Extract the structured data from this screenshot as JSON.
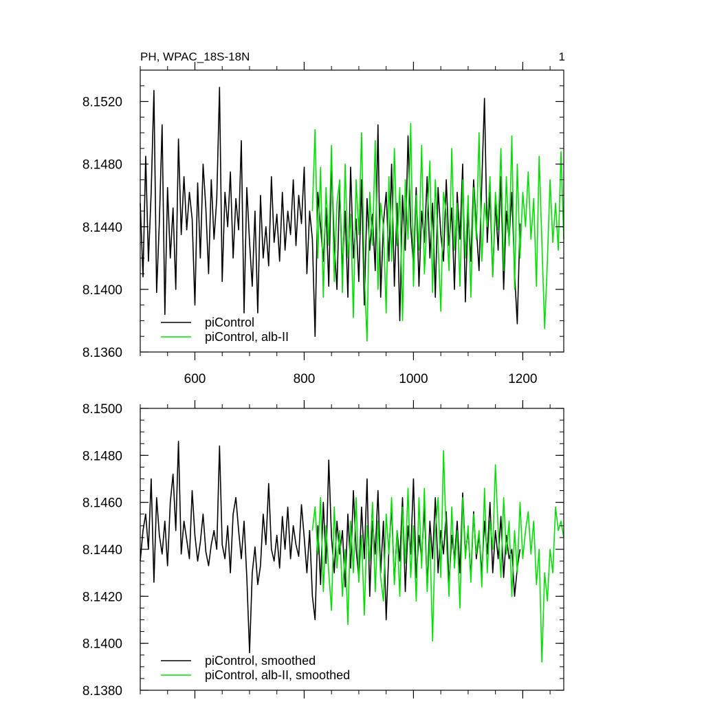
{
  "chart_data": [
    {
      "type": "line",
      "title": "PH, WPAC_18S-18N",
      "corner_label": "1",
      "xlim": [
        500,
        1275
      ],
      "ylim": [
        8.136,
        8.154
      ],
      "xticks": [
        600,
        800,
        1000,
        1200
      ],
      "xtick_labels": [
        "600",
        "800",
        "1000",
        "1200"
      ],
      "yticks": [
        8.136,
        8.14,
        8.144,
        8.148,
        8.152
      ],
      "ytick_labels": [
        "8.1360",
        "8.1400",
        "8.1440",
        "8.1480",
        "8.1520"
      ],
      "grid": false,
      "legend_position": "bottom-left",
      "series": [
        {
          "name": "piControl",
          "color": "#000000",
          "x": [
            500,
            505,
            510,
            515,
            520,
            525,
            530,
            535,
            540,
            545,
            550,
            555,
            560,
            565,
            570,
            575,
            580,
            585,
            590,
            595,
            600,
            605,
            610,
            615,
            620,
            625,
            630,
            635,
            640,
            645,
            650,
            655,
            660,
            665,
            670,
            675,
            680,
            685,
            690,
            695,
            700,
            705,
            710,
            715,
            720,
            725,
            730,
            735,
            740,
            745,
            750,
            755,
            760,
            765,
            770,
            775,
            780,
            785,
            790,
            795,
            800,
            805,
            810,
            815,
            820,
            825,
            830,
            835,
            840,
            845,
            850,
            855,
            860,
            865,
            870,
            875,
            880,
            885,
            890,
            895,
            900,
            905,
            910,
            915,
            920,
            925,
            930,
            935,
            940,
            945,
            950,
            955,
            960,
            965,
            970,
            975,
            980,
            985,
            990,
            995,
            1000,
            1005,
            1010,
            1015,
            1020,
            1025,
            1030,
            1035,
            1040,
            1045,
            1050,
            1055,
            1060,
            1065,
            1070,
            1075,
            1080,
            1085,
            1090,
            1095,
            1100,
            1105,
            1110,
            1115,
            1120,
            1125,
            1130,
            1135,
            1140,
            1145,
            1150,
            1155,
            1160,
            1165,
            1170,
            1175,
            1180,
            1185,
            1190,
            1195
          ],
          "values": [
            8.1455,
            8.1408,
            8.1485,
            8.1418,
            8.1462,
            8.1527,
            8.1398,
            8.1443,
            8.1505,
            8.1384,
            8.1465,
            8.142,
            8.1452,
            8.14,
            8.1496,
            8.1435,
            8.1472,
            8.1438,
            8.1462,
            8.1445,
            8.139,
            8.1468,
            8.142,
            8.148,
            8.1452,
            8.141,
            8.147,
            8.1432,
            8.1458,
            8.1529,
            8.1405,
            8.1462,
            8.144,
            8.1475,
            8.142,
            8.1458,
            8.1438,
            8.1495,
            8.1385,
            8.1465,
            8.143,
            8.1402,
            8.145,
            8.1385,
            8.146,
            8.142,
            8.144,
            8.1415,
            8.1472,
            8.143,
            8.1448,
            8.1418,
            8.1462,
            8.1425,
            8.145,
            8.1435,
            8.147,
            8.1428,
            8.146,
            8.1442,
            8.1478,
            8.141,
            8.145,
            8.1432,
            8.137,
            8.1462,
            8.144,
            8.1418,
            8.1452,
            8.1402,
            8.148,
            8.143,
            8.14,
            8.1465,
            8.1412,
            8.145,
            8.1395,
            8.1478,
            8.142,
            8.1445,
            8.1405,
            8.147,
            8.139,
            8.1458,
            8.1425,
            8.1448,
            8.1412,
            8.1505,
            8.1395,
            8.1442,
            8.1462,
            8.1418,
            8.148,
            8.1402,
            8.1455,
            8.138,
            8.146,
            8.1425,
            8.1498,
            8.144,
            8.1415,
            8.1465,
            8.1402,
            8.145,
            8.143,
            8.1472,
            8.142,
            8.1455,
            8.1395,
            8.1465,
            8.1435,
            8.1418,
            8.147,
            8.1428,
            8.1452,
            8.14,
            8.1462,
            8.1432,
            8.148,
            8.1392,
            8.145,
            8.1418,
            8.147,
            8.144,
            8.1412,
            8.1468,
            8.1522,
            8.143,
            8.1462,
            8.1408,
            8.1455,
            8.1425,
            8.1472,
            8.14,
            8.145,
            8.1432,
            8.1462,
            8.141,
            8.1378,
            8.1442
          ]
        },
        {
          "name": "piControl, alb-II",
          "color": "#00e000",
          "x": [
            815,
            820,
            825,
            830,
            835,
            840,
            845,
            850,
            855,
            860,
            865,
            870,
            875,
            880,
            885,
            890,
            895,
            900,
            905,
            910,
            915,
            920,
            925,
            930,
            935,
            940,
            945,
            950,
            955,
            960,
            965,
            970,
            975,
            980,
            985,
            990,
            995,
            1000,
            1005,
            1010,
            1015,
            1020,
            1025,
            1030,
            1035,
            1040,
            1045,
            1050,
            1055,
            1060,
            1065,
            1070,
            1075,
            1080,
            1085,
            1090,
            1095,
            1100,
            1105,
            1110,
            1115,
            1120,
            1125,
            1130,
            1135,
            1140,
            1145,
            1150,
            1155,
            1160,
            1165,
            1170,
            1175,
            1180,
            1185,
            1190,
            1195,
            1200,
            1205,
            1210,
            1215,
            1220,
            1225,
            1230,
            1235,
            1240,
            1245,
            1250,
            1255,
            1260,
            1265,
            1270,
            1275
          ],
          "values": [
            8.145,
            8.1502,
            8.142,
            8.1478,
            8.1395,
            8.1465,
            8.1428,
            8.1492,
            8.1405,
            8.1455,
            8.147,
            8.1398,
            8.148,
            8.142,
            8.1448,
            8.1382,
            8.147,
            8.1435,
            8.15,
            8.141,
            8.1367,
            8.1462,
            8.1428,
            8.1495,
            8.14,
            8.1455,
            8.144,
            8.1385,
            8.1472,
            8.1418,
            8.149,
            8.1428,
            8.1465,
            8.138,
            8.147,
            8.1432,
            8.1506,
            8.1402,
            8.146,
            8.1425,
            8.1492,
            8.141,
            8.1445,
            8.1482,
            8.1398,
            8.147,
            8.143,
            8.1386,
            8.1462,
            8.1448,
            8.1412,
            8.149,
            8.1425,
            8.1455,
            8.1402,
            8.147,
            8.142,
            8.146,
            8.1395,
            8.1465,
            8.1432,
            8.15,
            8.1418,
            8.1455,
            8.144,
            8.1472,
            8.1408,
            8.1462,
            8.1438,
            8.149,
            8.1412,
            8.1472,
            8.1428,
            8.1498,
            8.14,
            8.148,
            8.142,
            8.1462,
            8.144,
            8.1475,
            8.1432,
            8.1458,
            8.1402,
            8.1485,
            8.143,
            8.1375,
            8.1418,
            8.147,
            8.143,
            8.1455,
            8.1425,
            8.1488,
            8.1432
          ]
        }
      ]
    },
    {
      "type": "line",
      "title": "",
      "xlim": [
        500,
        1275
      ],
      "ylim": [
        8.138,
        8.15
      ],
      "xticks": [
        600,
        800,
        1000,
        1200
      ],
      "xtick_labels": [],
      "yticks": [
        8.138,
        8.14,
        8.142,
        8.144,
        8.146,
        8.148,
        8.15
      ],
      "ytick_labels": [
        "8.1380",
        "8.1400",
        "8.1420",
        "8.1440",
        "8.1460",
        "8.1480",
        "8.1500"
      ],
      "grid": false,
      "legend_position": "bottom-left",
      "series": [
        {
          "name": "piControl, smoothed",
          "color": "#000000",
          "x": [
            500,
            505,
            510,
            515,
            520,
            525,
            530,
            535,
            540,
            545,
            550,
            555,
            560,
            565,
            570,
            575,
            580,
            585,
            590,
            595,
            600,
            605,
            610,
            615,
            620,
            625,
            630,
            635,
            640,
            645,
            650,
            655,
            660,
            665,
            670,
            675,
            680,
            685,
            690,
            695,
            700,
            705,
            710,
            715,
            720,
            725,
            730,
            735,
            740,
            745,
            750,
            755,
            760,
            765,
            770,
            775,
            780,
            785,
            790,
            795,
            800,
            805,
            810,
            815,
            820,
            825,
            830,
            835,
            840,
            845,
            850,
            855,
            860,
            865,
            870,
            875,
            880,
            885,
            890,
            895,
            900,
            905,
            910,
            915,
            920,
            925,
            930,
            935,
            940,
            945,
            950,
            955,
            960,
            965,
            970,
            975,
            980,
            985,
            990,
            995,
            1000,
            1005,
            1010,
            1015,
            1020,
            1025,
            1030,
            1035,
            1040,
            1045,
            1050,
            1055,
            1060,
            1065,
            1070,
            1075,
            1080,
            1085,
            1090,
            1095,
            1100,
            1105,
            1110,
            1115,
            1120,
            1125,
            1130,
            1135,
            1140,
            1145,
            1150,
            1155,
            1160,
            1165,
            1170,
            1175,
            1180,
            1185,
            1190,
            1195
          ],
          "values": [
            8.1435,
            8.1448,
            8.1455,
            8.144,
            8.147,
            8.1426,
            8.1462,
            8.1446,
            8.1438,
            8.1452,
            8.1433,
            8.146,
            8.1472,
            8.1448,
            8.1486,
            8.1438,
            8.1452,
            8.1444,
            8.1436,
            8.1465,
            8.1446,
            8.1435,
            8.1443,
            8.1455,
            8.1439,
            8.1433,
            8.1442,
            8.1448,
            8.144,
            8.1484,
            8.1442,
            8.1436,
            8.145,
            8.143,
            8.1455,
            8.1462,
            8.1448,
            8.1436,
            8.1452,
            8.1428,
            8.1396,
            8.143,
            8.1441,
            8.1425,
            8.1433,
            8.1455,
            8.1442,
            8.1468,
            8.144,
            8.1435,
            8.1446,
            8.1432,
            8.1454,
            8.144,
            8.1458,
            8.1436,
            8.145,
            8.1442,
            8.1437,
            8.1459,
            8.1445,
            8.143,
            8.1448,
            8.142,
            8.141,
            8.145,
            8.1425,
            8.146,
            8.1434,
            8.1478,
            8.1445,
            8.143,
            8.1452,
            8.1438,
            8.1448,
            8.1424,
            8.1455,
            8.1432,
            8.1465,
            8.144,
            8.1428,
            8.1458,
            8.1436,
            8.147,
            8.142,
            8.1452,
            8.1438,
            8.1465,
            8.143,
            8.1452,
            8.141,
            8.144,
            8.1458,
            8.1426,
            8.1448,
            8.1435,
            8.1462,
            8.1422,
            8.145,
            8.1438,
            8.147,
            8.1428,
            8.1446,
            8.1436,
            8.1458,
            8.1424,
            8.1452,
            8.1436,
            8.1462,
            8.143,
            8.1448,
            8.1438,
            8.1456,
            8.1425,
            8.1446,
            8.1436,
            8.1452,
            8.143,
            8.1464,
            8.1438,
            8.1448,
            8.1428,
            8.1456,
            8.1436,
            8.1446,
            8.143,
            8.1452,
            8.1438,
            8.146,
            8.143,
            8.1448,
            8.1436,
            8.1454,
            8.1428,
            8.1446,
            8.1436,
            8.144,
            8.142,
            8.1432,
            8.144
          ]
        },
        {
          "name": "piControl, alb-II, smoothed",
          "color": "#00e000",
          "x": [
            815,
            820,
            825,
            830,
            835,
            840,
            845,
            850,
            855,
            860,
            865,
            870,
            875,
            880,
            885,
            890,
            895,
            900,
            905,
            910,
            915,
            920,
            925,
            930,
            935,
            940,
            945,
            950,
            955,
            960,
            965,
            970,
            975,
            980,
            985,
            990,
            995,
            1000,
            1005,
            1010,
            1015,
            1020,
            1025,
            1030,
            1035,
            1040,
            1045,
            1050,
            1055,
            1060,
            1065,
            1070,
            1075,
            1080,
            1085,
            1090,
            1095,
            1100,
            1105,
            1110,
            1115,
            1120,
            1125,
            1130,
            1135,
            1140,
            1145,
            1150,
            1155,
            1160,
            1165,
            1170,
            1175,
            1180,
            1185,
            1190,
            1195,
            1200,
            1205,
            1210,
            1215,
            1220,
            1225,
            1230,
            1235,
            1240,
            1245,
            1250,
            1255,
            1260,
            1265,
            1270,
            1275
          ],
          "values": [
            8.1448,
            8.1458,
            8.1438,
            8.1462,
            8.1422,
            8.145,
            8.143,
            8.1414,
            8.1458,
            8.1432,
            8.1448,
            8.142,
            8.144,
            8.1408,
            8.1452,
            8.143,
            8.1462,
            8.1426,
            8.1446,
            8.1412,
            8.145,
            8.1435,
            8.146,
            8.1422,
            8.1452,
            8.1428,
            8.1418,
            8.1455,
            8.1438,
            8.1462,
            8.1425,
            8.1448,
            8.142,
            8.1458,
            8.1434,
            8.1466,
            8.1428,
            8.145,
            8.1418,
            8.1462,
            8.1432,
            8.1466,
            8.1422,
            8.1445,
            8.1401,
            8.1448,
            8.1462,
            8.1428,
            8.1482,
            8.1445,
            8.142,
            8.1458,
            8.1432,
            8.1448,
            8.1415,
            8.1462,
            8.1436,
            8.145,
            8.1426,
            8.1455,
            8.1438,
            8.1448,
            8.1424,
            8.1466,
            8.143,
            8.1452,
            8.144,
            8.1476,
            8.1448,
            8.1428,
            8.1462,
            8.1438,
            8.1452,
            8.142,
            8.1448,
            8.143,
            8.146,
            8.1436,
            8.1448,
            8.1456,
            8.1438,
            8.1452,
            8.1425,
            8.144,
            8.1392,
            8.143,
            8.1418,
            8.144,
            8.143,
            8.1458,
            8.1448,
            8.1452,
            8.1445
          ]
        }
      ]
    }
  ]
}
